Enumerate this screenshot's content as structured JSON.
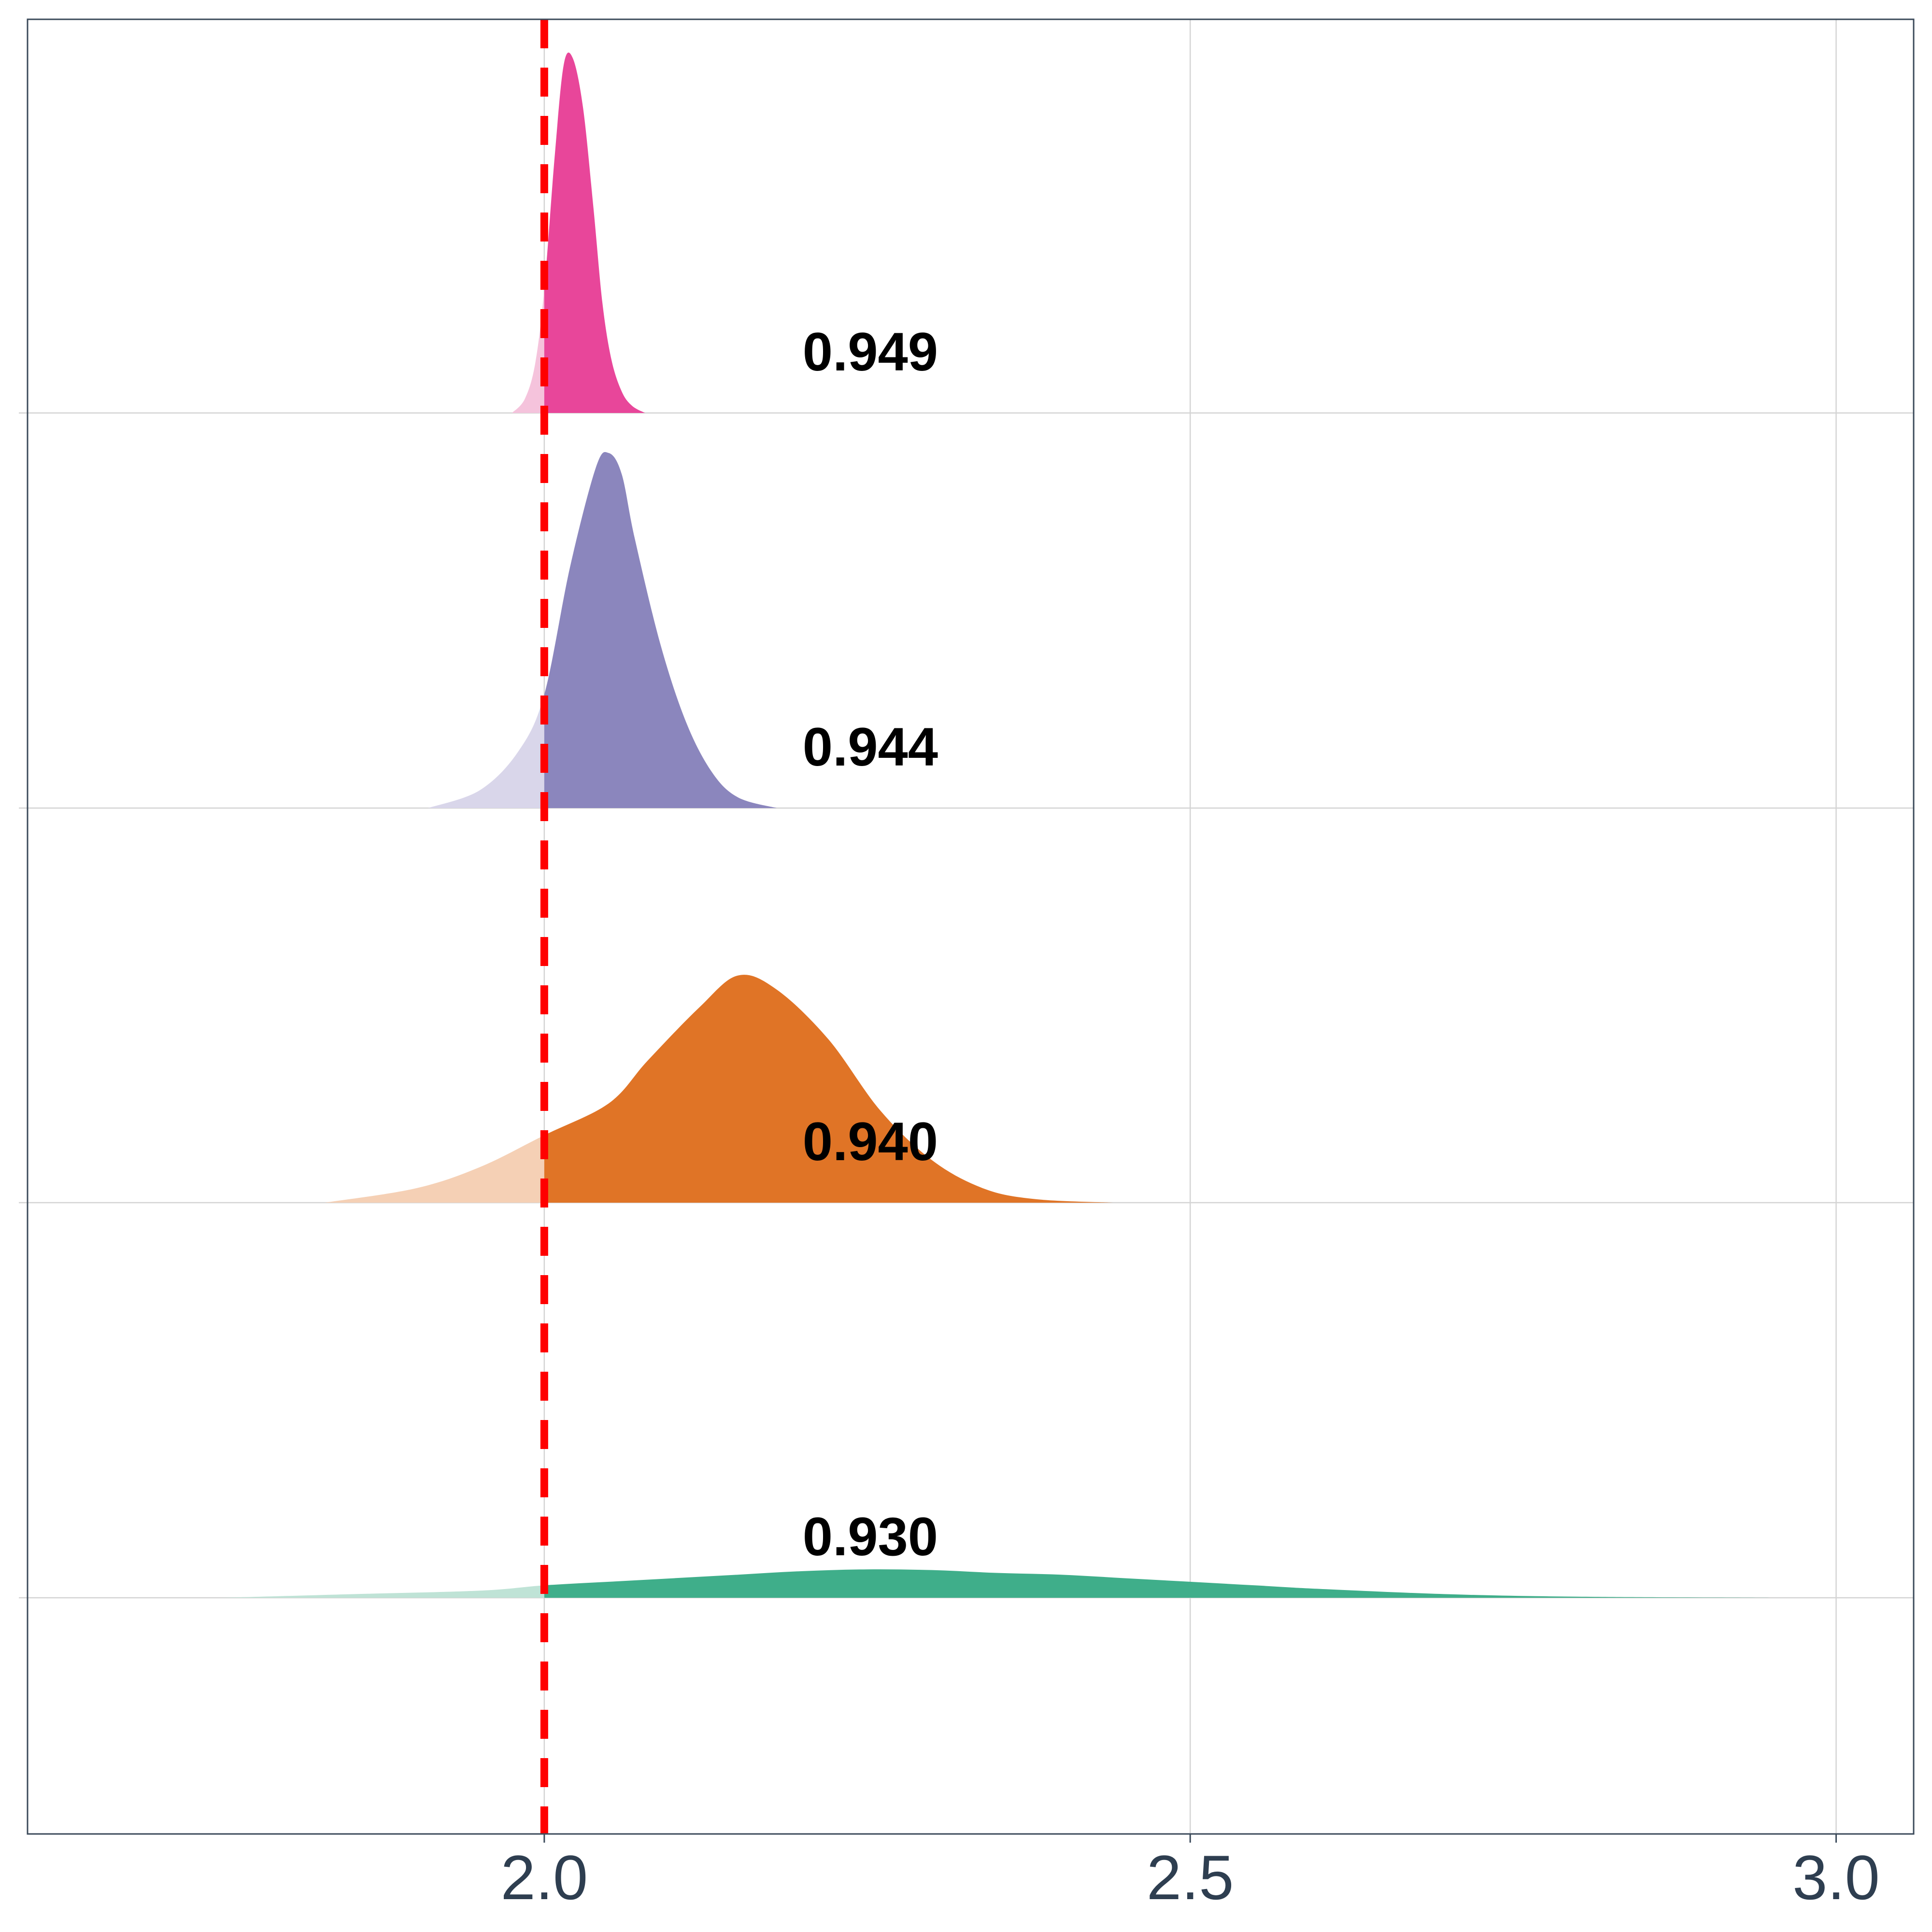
{
  "chart_data": {
    "type": "area",
    "subtype": "ridgeline-density",
    "title": "",
    "xlabel": "",
    "ylabel": "",
    "xlim": [
      1.6,
      3.06
    ],
    "x_ticks": [
      2.0,
      2.5,
      3.0
    ],
    "x_tick_labels": [
      "2.0",
      "2.5",
      "3.0"
    ],
    "grid": true,
    "legend": "none",
    "reference_line": {
      "x": 2.0,
      "style": "dashed",
      "color": "#ff0000"
    },
    "series": [
      {
        "annotation": "0.930",
        "color": "#3fae8a",
        "light_color": "#bfe3d6",
        "annotation_x": 2.2,
        "x": [
          1.75,
          1.85,
          1.95,
          2.0,
          2.05,
          2.1,
          2.15,
          2.2,
          2.25,
          2.3,
          2.35,
          2.4,
          2.45,
          2.5,
          2.55,
          2.6,
          2.7,
          2.8,
          2.95
        ],
        "density": [
          0.0,
          0.01,
          0.02,
          0.035,
          0.045,
          0.055,
          0.065,
          0.075,
          0.08,
          0.078,
          0.07,
          0.065,
          0.055,
          0.045,
          0.035,
          0.025,
          0.01,
          0.003,
          0.0
        ]
      },
      {
        "annotation": "0.940",
        "color": "#e07426",
        "light_color": "#f5d0b5",
        "annotation_x": 2.2,
        "x": [
          1.83,
          1.9,
          1.95,
          2.0,
          2.05,
          2.08,
          2.12,
          2.15,
          2.18,
          2.22,
          2.26,
          2.3,
          2.34,
          2.38,
          2.44
        ],
        "density": [
          0.0,
          0.04,
          0.1,
          0.19,
          0.28,
          0.4,
          0.55,
          0.64,
          0.6,
          0.46,
          0.26,
          0.12,
          0.04,
          0.01,
          0.0
        ]
      },
      {
        "annotation": "0.944",
        "color": "#8b86bd",
        "light_color": "#d9d6ea",
        "annotation_x": 2.2,
        "x": [
          1.91,
          1.95,
          1.98,
          2.0,
          2.02,
          2.04,
          2.05,
          2.06,
          2.07,
          2.09,
          2.11,
          2.13,
          2.15,
          2.18
        ],
        "density": [
          0.0,
          0.05,
          0.16,
          0.32,
          0.68,
          0.96,
          1.0,
          0.94,
          0.76,
          0.46,
          0.24,
          0.1,
          0.03,
          0.0
        ]
      },
      {
        "annotation": "0.949",
        "color": "#e8469a",
        "light_color": "#f5c3dc",
        "annotation_x": 2.2,
        "x": [
          1.975,
          1.985,
          1.993,
          2.0,
          2.008,
          2.015,
          2.022,
          2.03,
          2.038,
          2.045,
          2.052,
          2.06,
          2.068,
          2.078
        ],
        "density": [
          0.0,
          0.04,
          0.14,
          0.35,
          0.72,
          0.98,
          1.0,
          0.86,
          0.58,
          0.31,
          0.15,
          0.06,
          0.02,
          0.0
        ]
      }
    ]
  }
}
